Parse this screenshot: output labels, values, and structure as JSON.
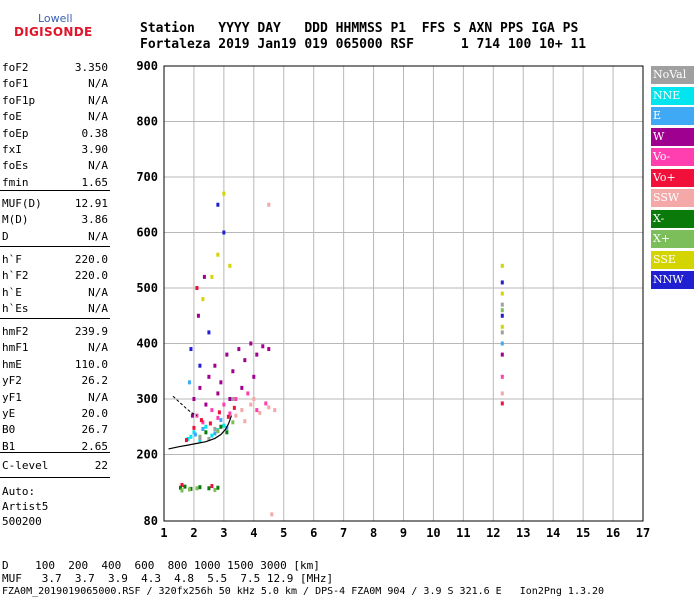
{
  "logo": {
    "line1": "Lowell",
    "line2": "DIGISONDE"
  },
  "header": {
    "row1": "Station   YYYY DAY   DDD HHMMSS P1  FFS S AXN PPS IGA PS",
    "row2": "Fortaleza 2019 Jan19 019 065000 RSF      1 714 100 10+ 11"
  },
  "params": {
    "group1": [
      {
        "k": "foF2",
        "v": "3.350"
      },
      {
        "k": "foF1",
        "v": "N/A"
      },
      {
        "k": "foF1p",
        "v": "N/A"
      },
      {
        "k": "foE",
        "v": "N/A"
      },
      {
        "k": "foEp",
        "v": "0.38"
      },
      {
        "k": "fxI",
        "v": "3.90"
      },
      {
        "k": "foEs",
        "v": "N/A"
      },
      {
        "k": "fmin",
        "v": "1.65"
      }
    ],
    "group2": [
      {
        "k": "MUF(D)",
        "v": "12.91"
      },
      {
        "k": "M(D)",
        "v": "3.86"
      },
      {
        "k": "D",
        "v": "N/A"
      }
    ],
    "group3": [
      {
        "k": "h`F",
        "v": "220.0"
      },
      {
        "k": "h`F2",
        "v": "220.0"
      },
      {
        "k": "h`E",
        "v": "N/A"
      },
      {
        "k": "h`Es",
        "v": "N/A"
      }
    ],
    "group4": [
      {
        "k": "hmF2",
        "v": "239.9"
      },
      {
        "k": "hmF1",
        "v": "N/A"
      },
      {
        "k": "hmE",
        "v": "110.0"
      },
      {
        "k": "yF2",
        "v": "26.2"
      },
      {
        "k": "yF1",
        "v": "N/A"
      },
      {
        "k": "yE",
        "v": "20.0"
      },
      {
        "k": "B0",
        "v": "26.7"
      },
      {
        "k": "B1",
        "v": "2.65"
      }
    ],
    "group5": [
      {
        "k": "C-level",
        "v": "22"
      }
    ]
  },
  "autoscaler": {
    "line1": "Auto:",
    "line2": "Artist5",
    "line3": "500200"
  },
  "footer": {
    "d_row": "D    100  200  400  600  800 1000 1500 3000 [km]",
    "muf_row": "MUF   3.7  3.7  3.9  4.3  4.8  5.5  7.5 12.9 [MHz]",
    "info": "FZA0M_2019019065000.RSF / 320fx256h 50 kHz 5.0 km / DPS-4 FZA0M 904 / 3.9 S 321.6 E   Ion2Png 1.3.20"
  },
  "legend": [
    {
      "label": "NoVal",
      "color": "#a0a0a0"
    },
    {
      "label": "NNE",
      "color": "#00e5ee"
    },
    {
      "label": "E",
      "color": "#3fa9f5"
    },
    {
      "label": "W",
      "color": "#a0008f"
    },
    {
      "label": "Vo-",
      "color": "#ff3fb0"
    },
    {
      "label": "Vo+",
      "color": "#f0103a"
    },
    {
      "label": "SSW",
      "color": "#f4a8a8"
    },
    {
      "label": "X-",
      "color": "#0a7a0a"
    },
    {
      "label": "X+",
      "color": "#7cbf5a"
    },
    {
      "label": "SSE",
      "color": "#d4d400"
    },
    {
      "label": "NNW",
      "color": "#2020d0"
    }
  ],
  "chart_data": {
    "type": "scatter",
    "title": "",
    "xlabel": "",
    "ylabel": "",
    "xlim": [
      1,
      17
    ],
    "ylim": [
      80,
      900
    ],
    "grid": true,
    "legend_position": "right",
    "x_ticks": [
      "1",
      "2",
      "3",
      "4",
      "5",
      "6",
      "7",
      "8",
      "9",
      "10",
      "11",
      "12",
      "13",
      "14",
      "15",
      "16",
      "17"
    ],
    "y_ticks": [
      "80",
      "200",
      "300",
      "400",
      "500",
      "600",
      "700",
      "800",
      "900"
    ],
    "trace": [
      {
        "x": 1.15,
        "y": 210
      },
      {
        "x": 1.5,
        "y": 214
      },
      {
        "x": 1.8,
        "y": 217
      },
      {
        "x": 2.1,
        "y": 220
      },
      {
        "x": 2.4,
        "y": 223
      },
      {
        "x": 2.7,
        "y": 229
      },
      {
        "x": 2.9,
        "y": 236
      },
      {
        "x": 3.05,
        "y": 245
      },
      {
        "x": 3.15,
        "y": 255
      },
      {
        "x": 3.2,
        "y": 262
      },
      {
        "x": 3.25,
        "y": 270
      }
    ],
    "trace_dashed": [
      {
        "x": 1.3,
        "y": 305
      },
      {
        "x": 1.5,
        "y": 295
      },
      {
        "x": 1.7,
        "y": 285
      },
      {
        "x": 1.9,
        "y": 276
      },
      {
        "x": 2.1,
        "y": 270
      }
    ],
    "series": [
      {
        "name": "NNE",
        "color": "#00e5ee",
        "points": [
          [
            1.9,
            232
          ],
          [
            2.0,
            240
          ],
          [
            2.2,
            226
          ],
          [
            2.4,
            250
          ],
          [
            2.6,
            234
          ],
          [
            2.8,
            244
          ],
          [
            3.0,
            252
          ],
          [
            1.8,
            228
          ]
        ]
      },
      {
        "name": "E",
        "color": "#3fa9f5",
        "points": [
          [
            2.05,
            236
          ],
          [
            2.3,
            246
          ],
          [
            2.7,
            238
          ],
          [
            2.9,
            262
          ],
          [
            3.1,
            248
          ],
          [
            1.85,
            330
          ],
          [
            12.3,
            400
          ]
        ]
      },
      {
        "name": "W",
        "color": "#a0008f",
        "points": [
          [
            2.0,
            300
          ],
          [
            2.2,
            320
          ],
          [
            2.5,
            340
          ],
          [
            2.7,
            360
          ],
          [
            2.9,
            330
          ],
          [
            3.1,
            380
          ],
          [
            3.3,
            350
          ],
          [
            3.5,
            390
          ],
          [
            3.7,
            370
          ],
          [
            3.9,
            400
          ],
          [
            4.1,
            380
          ],
          [
            4.3,
            395
          ],
          [
            4.5,
            390
          ],
          [
            2.4,
            290
          ],
          [
            2.8,
            310
          ],
          [
            3.2,
            300
          ],
          [
            3.6,
            320
          ],
          [
            4.0,
            340
          ],
          [
            1.95,
            270
          ],
          [
            2.15,
            450
          ],
          [
            2.35,
            520
          ],
          [
            12.3,
            380
          ]
        ]
      },
      {
        "name": "Vo-",
        "color": "#ff3fb0",
        "points": [
          [
            2.1,
            270
          ],
          [
            2.3,
            258
          ],
          [
            2.6,
            280
          ],
          [
            2.8,
            266
          ],
          [
            3.0,
            290
          ],
          [
            3.2,
            274
          ],
          [
            3.4,
            300
          ],
          [
            4.1,
            280
          ],
          [
            4.4,
            292
          ],
          [
            3.8,
            310
          ],
          [
            12.3,
            340
          ]
        ]
      },
      {
        "name": "Vo+",
        "color": "#f0103a",
        "points": [
          [
            1.75,
            226
          ],
          [
            2.0,
            248
          ],
          [
            2.25,
            262
          ],
          [
            2.55,
            256
          ],
          [
            2.85,
            276
          ],
          [
            3.15,
            268
          ],
          [
            3.35,
            284
          ],
          [
            2.1,
            500
          ],
          [
            12.3,
            292
          ],
          [
            2.6,
            143
          ],
          [
            1.6,
            145
          ]
        ]
      },
      {
        "name": "SSW",
        "color": "#f4a8a8",
        "points": [
          [
            3.4,
            270
          ],
          [
            3.6,
            280
          ],
          [
            3.9,
            290
          ],
          [
            4.2,
            275
          ],
          [
            4.5,
            285
          ],
          [
            4.7,
            280
          ],
          [
            4.0,
            300
          ],
          [
            3.7,
            260
          ],
          [
            4.6,
            92
          ],
          [
            4.5,
            650
          ],
          [
            12.3,
            310
          ]
        ]
      },
      {
        "name": "X-",
        "color": "#0a7a0a",
        "points": [
          [
            1.55,
            140
          ],
          [
            1.7,
            142
          ],
          [
            1.9,
            138
          ],
          [
            2.2,
            141
          ],
          [
            2.5,
            139
          ],
          [
            2.8,
            140
          ],
          [
            2.4,
            240
          ],
          [
            2.9,
            250
          ],
          [
            3.1,
            240
          ]
        ]
      },
      {
        "name": "X+",
        "color": "#7cbf5a",
        "points": [
          [
            1.6,
            135
          ],
          [
            1.85,
            137
          ],
          [
            2.1,
            139
          ],
          [
            2.7,
            136
          ],
          [
            2.2,
            232
          ],
          [
            2.8,
            242
          ],
          [
            3.3,
            258
          ],
          [
            12.3,
            460
          ]
        ]
      },
      {
        "name": "SSE",
        "color": "#d4d400",
        "points": [
          [
            2.3,
            480
          ],
          [
            2.6,
            520
          ],
          [
            2.8,
            560
          ],
          [
            3.0,
            670
          ],
          [
            3.2,
            540
          ],
          [
            12.3,
            490
          ],
          [
            12.3,
            430
          ],
          [
            12.3,
            540
          ]
        ]
      },
      {
        "name": "NNW",
        "color": "#2020d0",
        "points": [
          [
            1.9,
            390
          ],
          [
            2.5,
            420
          ],
          [
            2.8,
            650
          ],
          [
            3.0,
            600
          ],
          [
            12.3,
            510
          ],
          [
            12.3,
            450
          ],
          [
            2.2,
            360
          ]
        ]
      },
      {
        "name": "NoVal",
        "color": "#a0a0a0",
        "points": [
          [
            2.2,
            230
          ],
          [
            2.5,
            228
          ],
          [
            2.7,
            246
          ],
          [
            3.3,
            300
          ],
          [
            12.3,
            420
          ],
          [
            12.3,
            470
          ]
        ]
      }
    ]
  }
}
